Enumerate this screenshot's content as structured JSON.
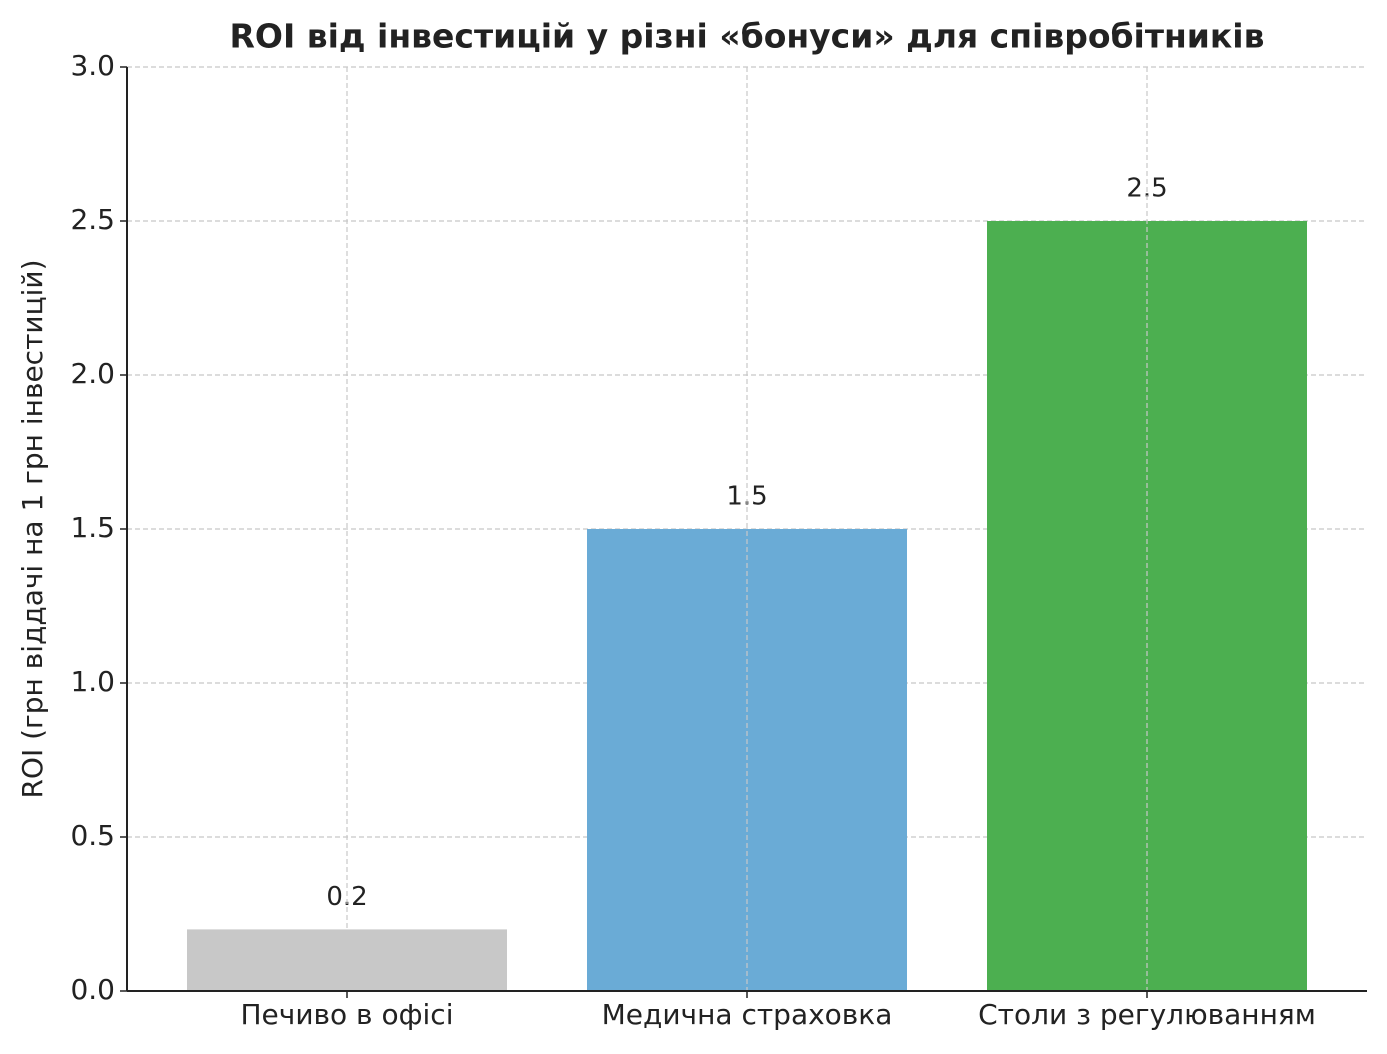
{
  "chart_data": {
    "type": "bar",
    "title": "ROI від інвестицій у різні «бонуси» для співробітників",
    "ylabel": "ROI (грн віддачі на 1 грн інвестицій)",
    "categories": [
      "Печиво в офісі",
      "Медична страховка",
      "Столи з регулюванням"
    ],
    "values": [
      0.2,
      1.5,
      2.5
    ],
    "colors": [
      "#c8c8c8",
      "#6aabd6",
      "#4caf50"
    ],
    "ylim": [
      0,
      3
    ],
    "yticks": [
      {
        "value": 0,
        "label": "0.0"
      },
      0.5,
      {
        "value": 1,
        "label": "1.0"
      },
      1.5,
      {
        "value": 2,
        "label": "2.0"
      },
      2.5,
      {
        "value": 3,
        "label": "3.0"
      }
    ],
    "grid": true
  }
}
